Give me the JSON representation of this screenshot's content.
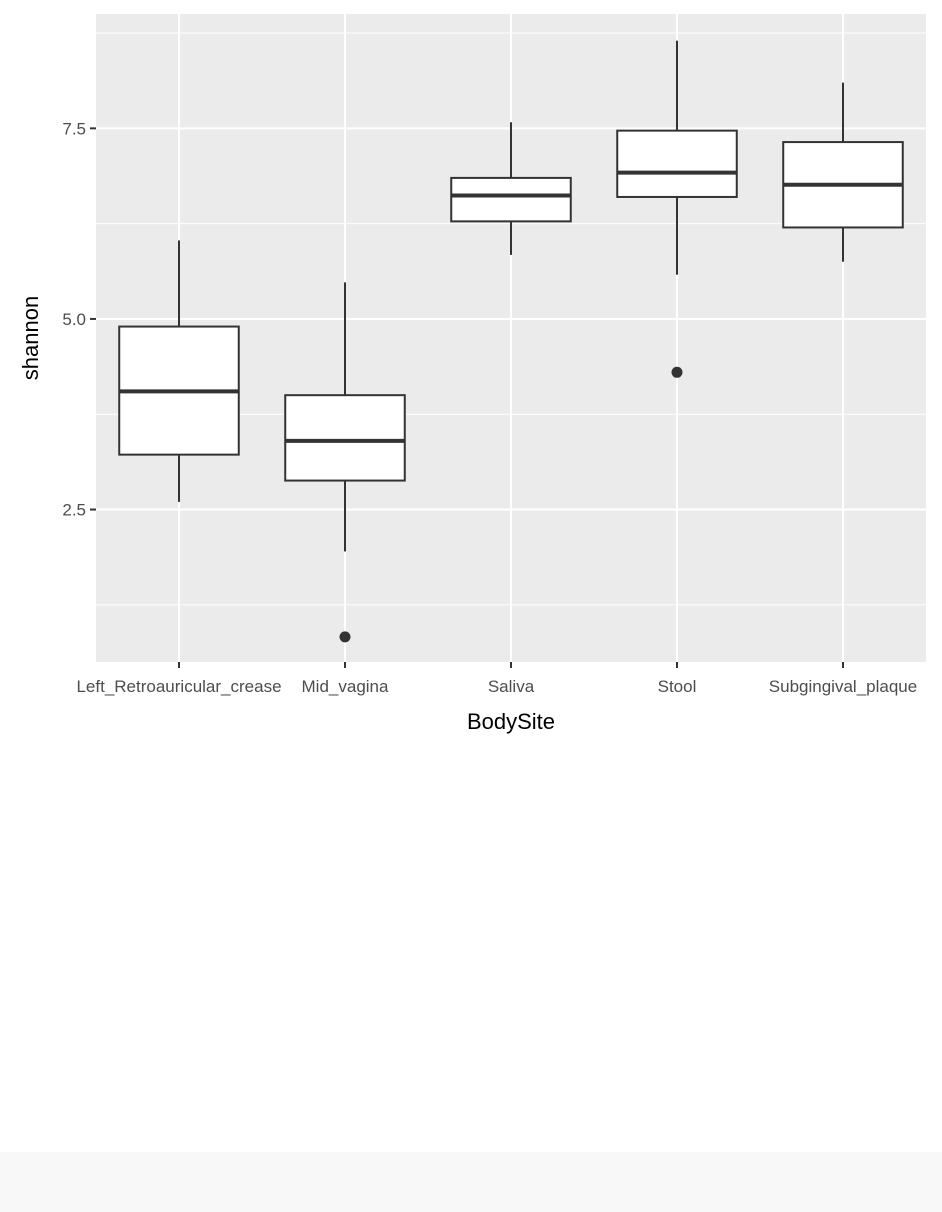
{
  "chart_data": {
    "type": "box",
    "xlabel": "BodySite",
    "ylabel": "shannon",
    "categories": [
      "Left_Retroauricular_crease",
      "Mid_vagina",
      "Saliva",
      "Stool",
      "Subgingival_plaque"
    ],
    "boxes": [
      {
        "category": "Left_Retroauricular_crease",
        "whisker_low": 2.6,
        "q1": 3.22,
        "median": 4.05,
        "q3": 4.9,
        "whisker_high": 6.03,
        "outliers": []
      },
      {
        "category": "Mid_vagina",
        "whisker_low": 1.95,
        "q1": 2.88,
        "median": 3.4,
        "q3": 4.0,
        "whisker_high": 5.48,
        "outliers": [
          0.83
        ]
      },
      {
        "category": "Saliva",
        "whisker_low": 5.84,
        "q1": 6.28,
        "median": 6.62,
        "q3": 6.85,
        "whisker_high": 7.58,
        "outliers": []
      },
      {
        "category": "Stool",
        "whisker_low": 5.58,
        "q1": 6.6,
        "median": 6.92,
        "q3": 7.47,
        "whisker_high": 8.65,
        "outliers": [
          4.3
        ]
      },
      {
        "category": "Subgingival_plaque",
        "whisker_low": 5.75,
        "q1": 6.2,
        "median": 6.76,
        "q3": 7.32,
        "whisker_high": 8.1,
        "outliers": []
      }
    ],
    "y_ticks": [
      2.5,
      5.0,
      7.5
    ],
    "y_tick_labels": [
      "2.5",
      "5.0",
      "7.5"
    ],
    "ylim": [
      0.5,
      9.0
    ],
    "grid": true,
    "legend": "none",
    "colors": {
      "panel_background": "#ebebeb",
      "grid_line": "#ffffff",
      "box_fill": "#ffffff",
      "box_stroke": "#333333",
      "text": "#4d4d4d",
      "axis_title": "#000000"
    }
  }
}
